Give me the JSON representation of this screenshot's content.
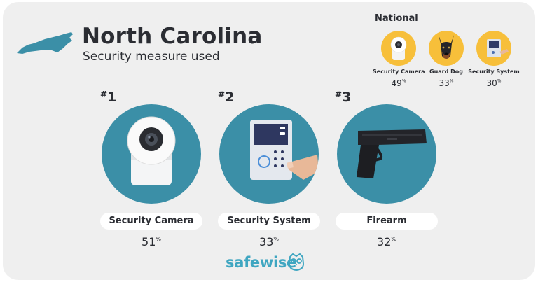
{
  "header": {
    "state": "North Carolina",
    "subtitle": "Security measure used",
    "state_shape_icon": "north-carolina-map-icon"
  },
  "national": {
    "label": "National",
    "items": [
      {
        "name": "Security Camera",
        "percent": "49",
        "unit": "%",
        "icon": "security-camera-icon"
      },
      {
        "name": "Guard Dog",
        "percent": "33",
        "unit": "%",
        "icon": "guard-dog-icon"
      },
      {
        "name": "Security System",
        "percent": "30",
        "unit": "%",
        "icon": "security-system-icon"
      }
    ]
  },
  "rankings": [
    {
      "rank": "1",
      "hash": "#",
      "name": "Security Camera",
      "percent": "51",
      "unit": "%",
      "icon": "security-camera-icon"
    },
    {
      "rank": "2",
      "hash": "#",
      "name": "Security System",
      "percent": "33",
      "unit": "%",
      "icon": "security-system-icon"
    },
    {
      "rank": "3",
      "hash": "#",
      "name": "Firearm",
      "percent": "32",
      "unit": "%",
      "icon": "handgun-icon"
    }
  ],
  "brand": {
    "name": "safewise",
    "icon": "owl-logo-icon"
  },
  "colors": {
    "background": "#efefef",
    "circle_teal": "#3b8fa7",
    "circle_yellow": "#f7bf3a",
    "text_dark": "#2b2d33",
    "brand_blue": "#3fa6c1"
  }
}
